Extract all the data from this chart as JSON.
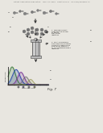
{
  "bg_color": "#e8e6e0",
  "text_color": "#333333",
  "dark": "#222222",
  "gray": "#888888",
  "lightgray": "#bbbbbb",
  "header": "Patent Application Publication    Nov. 26, 2015   Sheet 8 of 11   US 2015/0344937 A1",
  "label1": "1. Nanopore DNA\nSequencing of one\nor more\nFRET-label\nAdaptors",
  "label2": "2. DNA Combing &\nFluorescence Melting\nCurves to determine\nand verify where 1\nor no unlabeled FRET\nAdaptors",
  "fig_label": "Fig. 7",
  "peak_data": [
    {
      "mu": 5,
      "sigma": 4.0,
      "amp": 1.0,
      "color": "#3a7a3a",
      "lw": 0.7
    },
    {
      "mu": 10,
      "sigma": 4.5,
      "amp": 0.85,
      "color": "#2244aa",
      "lw": 0.7
    },
    {
      "mu": 16,
      "sigma": 4.0,
      "amp": 0.7,
      "color": "#773399",
      "lw": 0.7
    },
    {
      "mu": 22,
      "sigma": 3.5,
      "amp": 0.45,
      "color": "#666666",
      "lw": 0.5
    },
    {
      "mu": 28,
      "sigma": 3.0,
      "amp": 0.3,
      "color": "#999955",
      "lw": 0.5
    }
  ]
}
